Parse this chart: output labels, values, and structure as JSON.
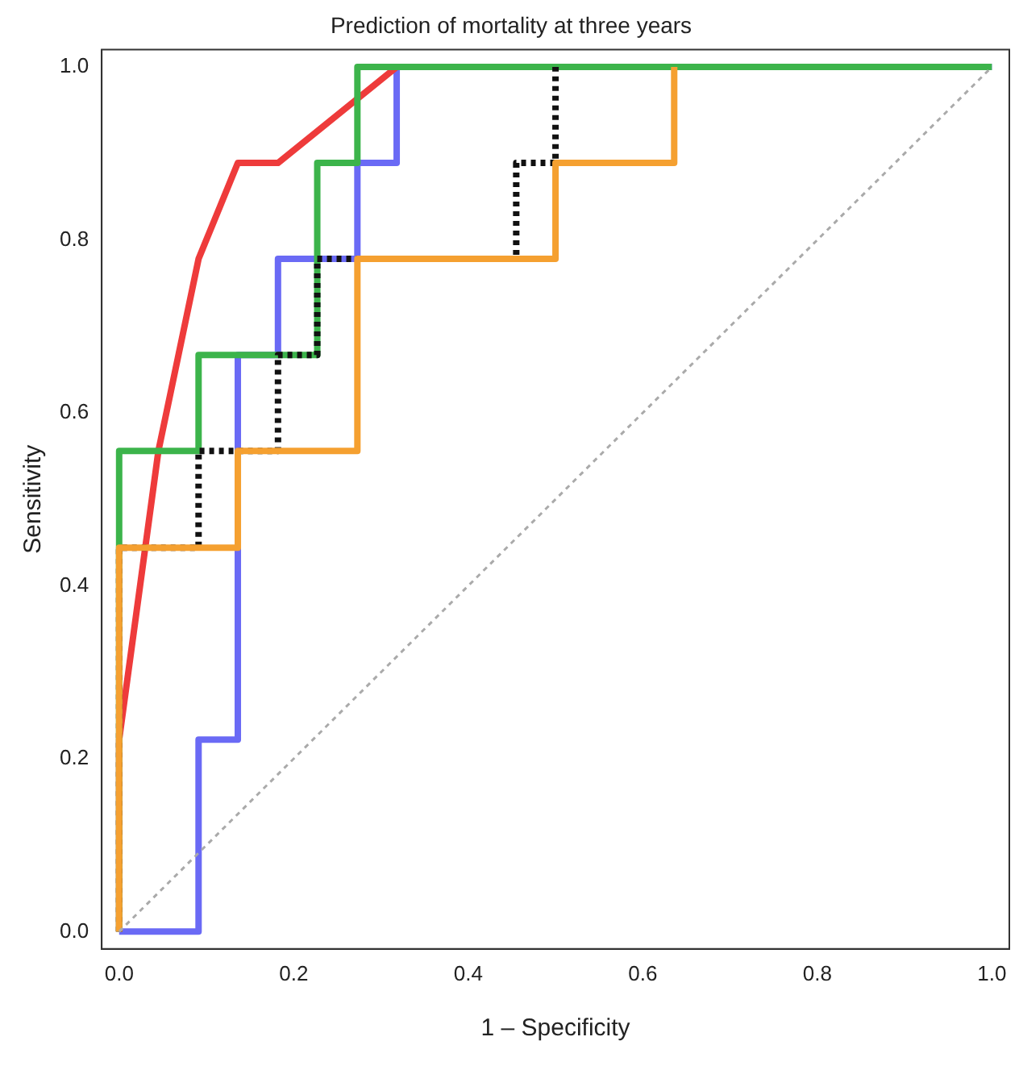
{
  "chart_data": {
    "type": "line",
    "title": "Prediction of mortality at three years",
    "xlabel": "1 – Specificity",
    "ylabel": "Sensitivity",
    "xlim": [
      -0.02,
      1.02
    ],
    "ylim": [
      -0.02,
      1.02
    ],
    "xticks": [
      {
        "value": 0,
        "label": "0.0"
      },
      {
        "value": 0.2,
        "label": "0.2"
      },
      {
        "value": 0.4,
        "label": "0.4"
      },
      {
        "value": 0.6,
        "label": "0.6"
      },
      {
        "value": 0.8,
        "label": "0.8"
      },
      {
        "value": 1,
        "label": "1.0"
      }
    ],
    "yticks": [
      {
        "value": 0,
        "label": "0.0"
      },
      {
        "value": 0.2,
        "label": "0.2"
      },
      {
        "value": 0.4,
        "label": "0.4"
      },
      {
        "value": 0.6,
        "label": "0.6"
      },
      {
        "value": 0.8,
        "label": "0.8"
      },
      {
        "value": 1,
        "label": "1.0"
      }
    ],
    "grid": false,
    "legend": false,
    "marker": "none",
    "series": [
      {
        "color": "#aaaaaa",
        "line_style": "dotted",
        "x": [
          0,
          1
        ],
        "values": [
          0,
          1
        ]
      },
      {
        "color": "#f5a030",
        "line_style": "solid",
        "x": [
          0,
          0,
          0.136,
          0.136,
          0.273,
          0.273,
          0.5,
          0.5,
          0.636,
          0.636
        ],
        "values": [
          0,
          0.444,
          0.444,
          0.556,
          0.556,
          0.778,
          0.778,
          0.889,
          0.889,
          1
        ]
      },
      {
        "color": "#111111",
        "line_style": "dotted",
        "x": [
          0,
          0,
          0.091,
          0.091,
          0.182,
          0.182,
          0.227,
          0.227,
          0.455,
          0.455,
          0.5,
          0.5
        ],
        "values": [
          0,
          0.444,
          0.444,
          0.556,
          0.556,
          0.667,
          0.667,
          0.778,
          0.778,
          0.889,
          0.889,
          1
        ]
      },
      {
        "color": "#3cb44b",
        "line_style": "solid",
        "x": [
          0,
          0,
          0.091,
          0.091,
          0.227,
          0.227,
          0.273,
          0.273,
          1
        ],
        "values": [
          0,
          0.556,
          0.556,
          0.667,
          0.667,
          0.889,
          0.889,
          1,
          1
        ]
      },
      {
        "color": "#ee3b3b",
        "line_style": "solid",
        "x": [
          0,
          0,
          0.045,
          0.091,
          0.136,
          0.182,
          0.318
        ],
        "values": [
          0,
          0.222,
          0.556,
          0.778,
          0.889,
          0.889,
          1
        ]
      },
      {
        "color": "#6a6af5",
        "line_style": "solid",
        "x": [
          0,
          0.091,
          0.091,
          0.136,
          0.136,
          0.182,
          0.182,
          0.273,
          0.273,
          0.318,
          0.318,
          1
        ],
        "values": [
          0,
          0,
          0.222,
          0.222,
          0.667,
          0.667,
          0.778,
          0.778,
          0.889,
          0.889,
          1,
          1
        ]
      }
    ]
  }
}
